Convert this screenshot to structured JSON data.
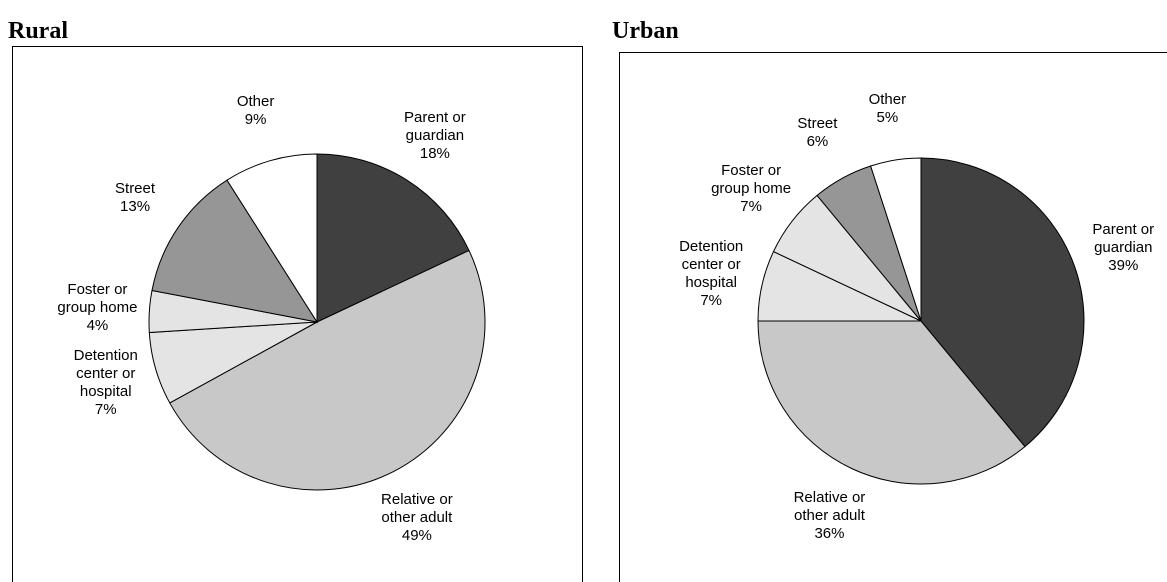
{
  "chart_data": [
    {
      "type": "pie",
      "title": "Rural",
      "categories": [
        "Parent or guardian",
        "Relative or other adult",
        "Detention center or hospital",
        "Foster or group home",
        "Street",
        "Other"
      ],
      "values": [
        18,
        49,
        7,
        4,
        13,
        9
      ],
      "value_labels": [
        "18%",
        "49%",
        "7%",
        "4%",
        "13%",
        "9%"
      ],
      "colors": [
        "#404040",
        "#c8c8c8",
        "#e4e4e4",
        "#e4e4e4",
        "#969696",
        "#ffffff"
      ]
    },
    {
      "type": "pie",
      "title": "Urban",
      "categories": [
        "Parent or guardian",
        "Relative or other adult",
        "Detention center or hospital",
        "Foster or group home",
        "Street",
        "Other"
      ],
      "values": [
        39,
        36,
        7,
        7,
        6,
        5
      ],
      "value_labels": [
        "39%",
        "36%",
        "7%",
        "7%",
        "6%",
        "5%"
      ],
      "colors": [
        "#404040",
        "#c8c8c8",
        "#e4e4e4",
        "#e4e4e4",
        "#969696",
        "#ffffff"
      ]
    }
  ]
}
